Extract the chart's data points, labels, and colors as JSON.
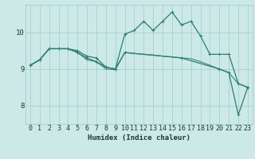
{
  "xlabel": "Humidex (Indice chaleur)",
  "bg_color": "#cce9e8",
  "grid_color": "#aad4d2",
  "line_color": "#2e7d6e",
  "xlim": [
    -0.5,
    23.5
  ],
  "ylim": [
    7.5,
    10.75
  ],
  "yticks": [
    8,
    9,
    10
  ],
  "xticks": [
    0,
    1,
    2,
    3,
    4,
    5,
    6,
    7,
    8,
    9,
    10,
    11,
    12,
    13,
    14,
    15,
    16,
    17,
    18,
    19,
    20,
    21,
    22,
    23
  ],
  "curve1_x": [
    0,
    1,
    2,
    3,
    4,
    5,
    6,
    7,
    8,
    9,
    10,
    11,
    12,
    13,
    14,
    15,
    16,
    17,
    18,
    19,
    20,
    21,
    22,
    23
  ],
  "curve1_y": [
    9.1,
    9.25,
    9.55,
    9.55,
    9.55,
    9.5,
    9.35,
    9.3,
    9.05,
    9.0,
    9.95,
    10.05,
    10.3,
    10.05,
    10.3,
    10.55,
    10.2,
    10.3,
    9.9,
    9.4,
    9.4,
    9.4,
    8.6,
    8.5
  ],
  "curve2_x": [
    0,
    1,
    2,
    3,
    4,
    5,
    6,
    7,
    8,
    9,
    10,
    11,
    12,
    13,
    14,
    15,
    16,
    17,
    18,
    19,
    20,
    21,
    22,
    23
  ],
  "curve2_y": [
    9.1,
    9.25,
    9.55,
    9.55,
    9.55,
    9.45,
    9.25,
    9.2,
    9.0,
    8.98,
    9.45,
    9.42,
    9.4,
    9.38,
    9.35,
    9.33,
    9.3,
    9.28,
    9.2,
    9.1,
    9.0,
    8.9,
    8.6,
    8.5
  ],
  "curve3_x": [
    0,
    1,
    2,
    3,
    4,
    5,
    6,
    7,
    8,
    9,
    10,
    16,
    20,
    21,
    22,
    23
  ],
  "curve3_y": [
    9.1,
    9.25,
    9.55,
    9.55,
    9.55,
    9.45,
    9.3,
    9.2,
    9.05,
    9.0,
    9.45,
    9.3,
    9.0,
    8.9,
    7.75,
    8.5
  ],
  "marker_size": 2.5,
  "line_width": 0.9,
  "xlabel_fontsize": 6.5,
  "tick_fontsize": 6.0
}
